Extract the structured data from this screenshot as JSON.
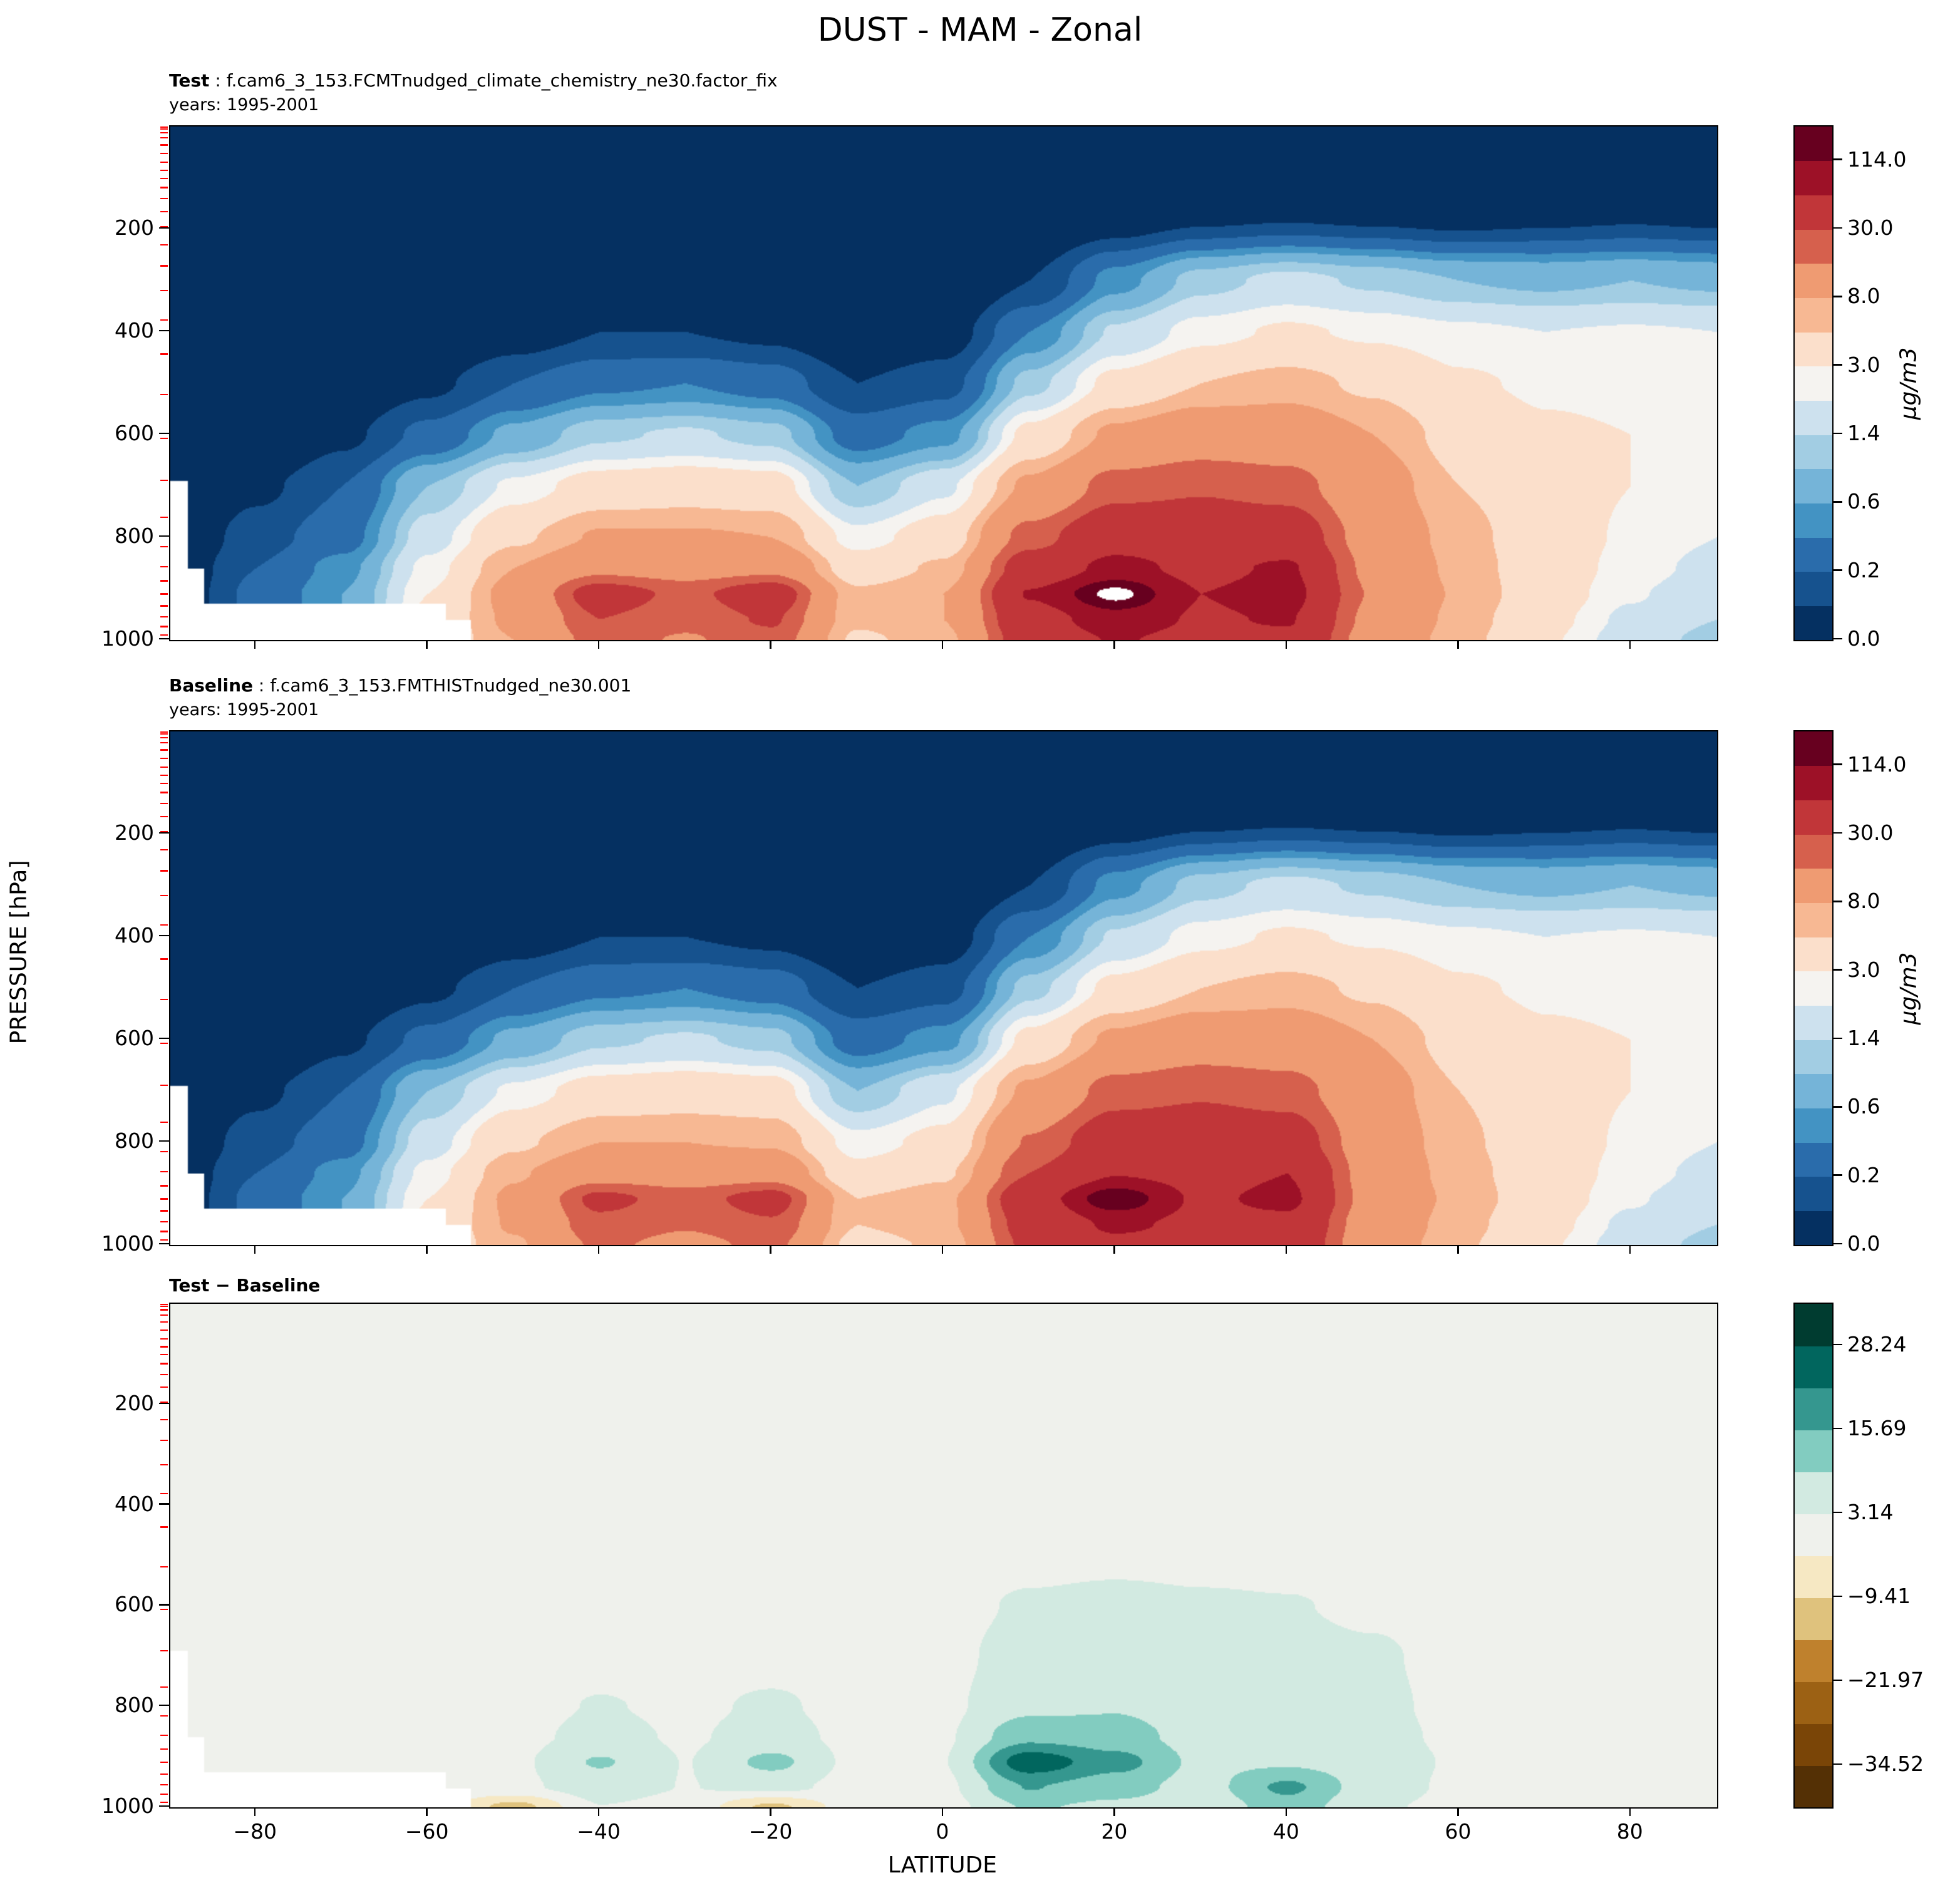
{
  "title": "DUST - MAM - Zonal",
  "panels": [
    {
      "label": "Test",
      "rest": " : f.cam6_3_153.FCMTnudged_climate_chemistry_ne30.factor_fix",
      "years": "years: 1995-2001"
    },
    {
      "label": "Baseline",
      "rest": " : f.cam6_3_153.FMTHISTnudged_ne30.001",
      "years": "years: 1995-2001"
    },
    {
      "label": "Test − Baseline",
      "rest": "",
      "years": ""
    }
  ],
  "axes": {
    "xlabel": "LATITUDE",
    "ylabel": "PRESSURE [hPa]",
    "x_tick_values": [
      -80,
      -60,
      -40,
      -20,
      0,
      20,
      40,
      60,
      80
    ],
    "x_tick_labels": [
      "−80",
      "−60",
      "−40",
      "−20",
      "0",
      "20",
      "40",
      "60",
      "80"
    ],
    "y_tick_values": [
      200,
      400,
      600,
      800,
      1000
    ],
    "y_tick_labels": [
      "200",
      "400",
      "600",
      "800",
      "1000"
    ],
    "xlim": [
      -90,
      90
    ],
    "ylim_top_hpa": 0,
    "ylim_bottom_hpa": 1000,
    "model_level_marks_hpa": [
      3.6,
      7.6,
      14.4,
      24.6,
      38.3,
      54.6,
      72.0,
      87.8,
      103.3,
      121.5,
      142.9,
      168.2,
      197.9,
      232.8,
      273.9,
      322.2,
      379.1,
      445.9,
      524.7,
      609.8,
      691.4,
      763.4,
      820.8,
      859.5,
      887.0,
      912.6,
      936.2,
      957.5,
      976.3,
      992.6
    ]
  },
  "colorbars": {
    "concentration": {
      "units": "μg/m3",
      "tick_labels": [
        "0.0",
        "0.2",
        "0.6",
        "1.4",
        "3.0",
        "8.0",
        "30.0",
        "114.0"
      ],
      "tick_segment_boundaries": [
        0,
        2,
        4,
        6,
        8,
        10,
        12,
        14
      ],
      "segment_colors": [
        "#053061",
        "#16528e",
        "#2a6cab",
        "#4393c3",
        "#75b4d8",
        "#a2cde3",
        "#cde1ee",
        "#f5f3f0",
        "#fbdfcb",
        "#f7b893",
        "#ef9b72",
        "#d6604d",
        "#c13639",
        "#9d1127",
        "#67001f"
      ]
    },
    "difference": {
      "units": "",
      "tick_labels": [
        "−34.52",
        "−21.97",
        "−9.41",
        "3.14",
        "15.69",
        "28.24"
      ],
      "tick_segment_boundaries": [
        1,
        3,
        5,
        7,
        9,
        11
      ],
      "segment_colors": [
        "#543005",
        "#7a4507",
        "#9c6114",
        "#bf812d",
        "#dfc27d",
        "#f6e8c3",
        "#eff1ec",
        "#d2eae1",
        "#82ccc0",
        "#35978f",
        "#01665e",
        "#003c30"
      ]
    }
  },
  "chart_data": [
    {
      "type": "contour_fill",
      "panel": "Test",
      "x": "latitude_deg",
      "y": "pressure_hPa",
      "units": "μg/m3",
      "interp": "log",
      "lats": [
        -90,
        -80,
        -70,
        -60,
        -50,
        -40,
        -30,
        -20,
        -10,
        0,
        10,
        20,
        30,
        40,
        50,
        60,
        70,
        80,
        90
      ],
      "pressures": [
        0,
        150,
        300,
        400,
        500,
        600,
        700,
        800,
        860,
        910,
        960,
        1000
      ],
      "values": [
        [
          0.01,
          0.01,
          0.01,
          0.01,
          0.01,
          0.01,
          0.01,
          0.01,
          0.01,
          0.01,
          0.01,
          0.01,
          0.01,
          0.01,
          0.01,
          0.01,
          0.01,
          0.01,
          0.01
        ],
        [
          0.01,
          0.01,
          0.01,
          0.01,
          0.01,
          0.01,
          0.01,
          0.01,
          0.01,
          0.01,
          0.02,
          0.03,
          0.05,
          0.06,
          0.05,
          0.04,
          0.05,
          0.06,
          0.05
        ],
        [
          0.01,
          0.01,
          0.01,
          0.02,
          0.03,
          0.05,
          0.05,
          0.04,
          0.02,
          0.03,
          0.1,
          0.5,
          1.2,
          1.6,
          1.3,
          1.0,
          0.9,
          1.0,
          0.9
        ],
        [
          0.01,
          0.01,
          0.02,
          0.03,
          0.06,
          0.1,
          0.1,
          0.08,
          0.04,
          0.06,
          0.4,
          1.5,
          2.6,
          3.2,
          2.8,
          2.4,
          2.2,
          2.3,
          2.2
        ],
        [
          0.01,
          0.02,
          0.04,
          0.08,
          0.2,
          0.35,
          0.4,
          0.3,
          0.1,
          0.15,
          1.2,
          3.5,
          5.5,
          6.5,
          5.0,
          3.2,
          2.8,
          2.7,
          2.6
        ],
        [
          0.02,
          0.03,
          0.08,
          0.25,
          0.7,
          1.3,
          1.5,
          1.2,
          0.3,
          0.5,
          3.5,
          9.0,
          13.0,
          12.0,
          8.0,
          4.5,
          3.2,
          3.0,
          2.8
        ],
        [
          0.03,
          0.08,
          0.2,
          1.0,
          2.4,
          3.8,
          4.2,
          3.8,
          1.0,
          2.0,
          9.0,
          24.0,
          28.0,
          24.0,
          11.0,
          5.5,
          3.8,
          3.0,
          2.6
        ],
        [
          0.04,
          0.15,
          0.3,
          1.8,
          5.0,
          8.5,
          8.5,
          8.0,
          2.5,
          4.0,
          24.0,
          55.0,
          50.0,
          48.0,
          14.0,
          6.5,
          4.0,
          2.8,
          2.2
        ],
        [
          0.05,
          0.2,
          0.5,
          2.5,
          8.0,
          16.0,
          14.0,
          16.0,
          4.0,
          6.0,
          45.0,
          85.0,
          62.0,
          78.0,
          16.0,
          7.0,
          4.0,
          2.6,
          1.9
        ],
        [
          0.05,
          0.25,
          0.6,
          3.0,
          10.0,
          42.0,
          26.0,
          46.0,
          6.0,
          8.0,
          75.0,
          165.0,
          72.0,
          88.0,
          18.0,
          7.5,
          4.0,
          2.3,
          1.6
        ],
        [
          0.05,
          0.25,
          0.6,
          3.5,
          9.0,
          30.0,
          22.0,
          32.0,
          6.0,
          8.0,
          55.0,
          95.0,
          68.0,
          75.0,
          16.0,
          7.0,
          3.5,
          2.0,
          1.4
        ],
        [
          0.05,
          0.25,
          0.6,
          3.5,
          8.0,
          24.0,
          18.0,
          26.0,
          5.0,
          7.0,
          45.0,
          75.0,
          60.0,
          65.0,
          14.0,
          6.5,
          3.2,
          1.8,
          1.2
        ]
      ],
      "level_bounds": [
        -1,
        0.1,
        0.2,
        0.4,
        0.6,
        1.0,
        1.4,
        2.2,
        3.0,
        5.5,
        8.0,
        19,
        30,
        72,
        114,
        150
      ],
      "level_colors": [
        "#053061",
        "#16528e",
        "#2a6cab",
        "#4393c3",
        "#75b4d8",
        "#a2cde3",
        "#cde1ee",
        "#f5f3f0",
        "#fbdfcb",
        "#f7b893",
        "#ef9b72",
        "#d6604d",
        "#c13639",
        "#9d1127",
        "#67001f"
      ],
      "over_color": "#ffffff",
      "masked_surface": [
        [
          -90,
          -88,
          690
        ],
        [
          -88,
          -86,
          860
        ],
        [
          -86,
          -58,
          930
        ],
        [
          -58,
          -55,
          962
        ]
      ]
    },
    {
      "type": "contour_fill",
      "panel": "Baseline",
      "x": "latitude_deg",
      "y": "pressure_hPa",
      "units": "μg/m3",
      "interp": "log",
      "lats": [
        -90,
        -80,
        -70,
        -60,
        -50,
        -40,
        -30,
        -20,
        -10,
        0,
        10,
        20,
        30,
        40,
        50,
        60,
        70,
        80,
        90
      ],
      "pressures": [
        0,
        150,
        300,
        400,
        500,
        600,
        700,
        800,
        860,
        910,
        960,
        1000
      ],
      "values": [
        [
          0.01,
          0.01,
          0.01,
          0.01,
          0.01,
          0.01,
          0.01,
          0.01,
          0.01,
          0.01,
          0.01,
          0.01,
          0.01,
          0.01,
          0.01,
          0.01,
          0.01,
          0.01,
          0.01
        ],
        [
          0.01,
          0.01,
          0.01,
          0.01,
          0.01,
          0.01,
          0.01,
          0.01,
          0.01,
          0.01,
          0.02,
          0.03,
          0.05,
          0.06,
          0.05,
          0.04,
          0.05,
          0.06,
          0.05
        ],
        [
          0.01,
          0.01,
          0.01,
          0.02,
          0.03,
          0.05,
          0.05,
          0.04,
          0.02,
          0.03,
          0.1,
          0.5,
          1.2,
          1.6,
          1.3,
          1.0,
          0.9,
          1.0,
          0.9
        ],
        [
          0.01,
          0.01,
          0.02,
          0.03,
          0.06,
          0.1,
          0.1,
          0.08,
          0.04,
          0.06,
          0.4,
          1.5,
          2.6,
          3.2,
          2.8,
          2.4,
          2.2,
          2.3,
          2.2
        ],
        [
          0.01,
          0.02,
          0.04,
          0.08,
          0.2,
          0.35,
          0.4,
          0.3,
          0.1,
          0.15,
          1.2,
          3.5,
          5.5,
          6.5,
          5.0,
          3.2,
          2.8,
          2.7,
          2.6
        ],
        [
          0.02,
          0.03,
          0.08,
          0.25,
          0.7,
          1.3,
          1.5,
          1.2,
          0.3,
          0.5,
          3.5,
          9.0,
          13.0,
          12.0,
          8.0,
          4.5,
          3.2,
          3.0,
          2.8
        ],
        [
          0.03,
          0.08,
          0.2,
          1.0,
          2.4,
          3.8,
          4.2,
          3.8,
          1.0,
          2.0,
          9.0,
          24.0,
          28.0,
          24.0,
          11.0,
          5.5,
          3.8,
          3.0,
          2.6
        ],
        [
          0.04,
          0.15,
          0.3,
          1.8,
          5.0,
          8.0,
          8.0,
          7.5,
          2.5,
          3.5,
          20.0,
          48.0,
          48.0,
          44.0,
          13.0,
          6.0,
          4.0,
          2.8,
          2.2
        ],
        [
          0.05,
          0.2,
          0.5,
          2.5,
          7.5,
          14.0,
          13.0,
          14.0,
          3.5,
          5.0,
          30.0,
          70.0,
          58.0,
          72.0,
          14.0,
          6.5,
          4.0,
          2.6,
          1.9
        ],
        [
          0.05,
          0.25,
          0.6,
          3.0,
          9.0,
          35.0,
          24.0,
          39.0,
          5.5,
          7.0,
          52.0,
          150.0,
          66.0,
          82.0,
          15.0,
          7.0,
          4.0,
          2.3,
          1.6
        ],
        [
          0.05,
          0.25,
          0.6,
          3.5,
          8.5,
          26.0,
          20.0,
          28.0,
          5.5,
          7.0,
          40.0,
          80.0,
          62.0,
          62.0,
          13.0,
          6.5,
          3.5,
          2.0,
          1.4
        ],
        [
          0.05,
          0.25,
          0.6,
          3.5,
          7.5,
          21.0,
          16.0,
          22.0,
          4.5,
          6.0,
          35.0,
          62.0,
          55.0,
          55.0,
          12.0,
          6.0,
          3.2,
          1.8,
          1.2
        ]
      ],
      "level_bounds": [
        -1,
        0.1,
        0.2,
        0.4,
        0.6,
        1.0,
        1.4,
        2.2,
        3.0,
        5.5,
        8.0,
        19,
        30,
        72,
        114,
        150
      ],
      "level_colors": [
        "#053061",
        "#16528e",
        "#2a6cab",
        "#4393c3",
        "#75b4d8",
        "#a2cde3",
        "#cde1ee",
        "#f5f3f0",
        "#fbdfcb",
        "#f7b893",
        "#ef9b72",
        "#d6604d",
        "#c13639",
        "#9d1127",
        "#67001f"
      ],
      "over_color": "#ffffff",
      "masked_surface": [
        [
          -90,
          -88,
          690
        ],
        [
          -88,
          -86,
          860
        ],
        [
          -86,
          -58,
          930
        ],
        [
          -58,
          -55,
          962
        ]
      ]
    },
    {
      "type": "contour_fill",
      "panel": "Test − Baseline",
      "x": "latitude_deg",
      "y": "pressure_hPa",
      "units": "μg/m3",
      "interp": "linear",
      "lats": [
        -90,
        -80,
        -70,
        -60,
        -50,
        -40,
        -30,
        -20,
        -10,
        0,
        10,
        20,
        30,
        40,
        50,
        60,
        70,
        80,
        90
      ],
      "pressures": [
        0,
        300,
        500,
        600,
        700,
        800,
        860,
        910,
        960,
        1000
      ],
      "values": [
        [
          0.2,
          0.2,
          0.2,
          0.2,
          0.2,
          0.2,
          0.2,
          0.2,
          0.2,
          0.2,
          0.2,
          0.2,
          0.2,
          0.2,
          0.2,
          0.2,
          0.2,
          0.2,
          0.2
        ],
        [
          0.2,
          0.2,
          0.2,
          0.2,
          0.2,
          0.2,
          0.2,
          0.2,
          0.2,
          0.2,
          0.2,
          0.2,
          0.2,
          0.2,
          0.2,
          0.2,
          0.2,
          0.2,
          0.2
        ],
        [
          0.2,
          0.2,
          0.2,
          0.2,
          0.2,
          0.3,
          0.3,
          0.3,
          0.3,
          0.4,
          1.0,
          1.5,
          1.2,
          1.0,
          0.8,
          0.4,
          0.3,
          0.2,
          0.2
        ],
        [
          0.2,
          0.2,
          0.2,
          0.3,
          0.3,
          0.5,
          0.5,
          0.5,
          0.5,
          1.0,
          4.0,
          5.0,
          4.0,
          3.5,
          2.0,
          0.6,
          0.3,
          0.2,
          0.2
        ],
        [
          0.2,
          0.2,
          0.3,
          0.4,
          0.5,
          1.0,
          0.8,
          1.0,
          0.8,
          1.5,
          6.0,
          7.0,
          5.0,
          5.0,
          4.0,
          1.0,
          0.4,
          0.3,
          0.2
        ],
        [
          0.2,
          0.2,
          0.3,
          0.5,
          1.0,
          3.5,
          2.0,
          4.0,
          1.0,
          2.0,
          8.0,
          9.0,
          6.0,
          6.0,
          4.5,
          1.5,
          0.5,
          0.3,
          0.2
        ],
        [
          0.2,
          0.2,
          0.4,
          0.6,
          1.5,
          5.0,
          2.5,
          5.5,
          1.5,
          2.5,
          14.0,
          12.0,
          7.0,
          7.0,
          5.0,
          2.0,
          0.6,
          0.3,
          0.2
        ],
        [
          0.2,
          0.3,
          0.5,
          0.8,
          2.0,
          10.0,
          3.0,
          11.0,
          1.5,
          3.0,
          26.0,
          18.0,
          8.0,
          8.5,
          6.0,
          2.5,
          0.6,
          0.3,
          0.2
        ],
        [
          0.2,
          0.3,
          0.5,
          0.8,
          2.0,
          6.0,
          3.0,
          5.0,
          1.0,
          2.0,
          16.0,
          12.0,
          7.0,
          17.0,
          6.0,
          2.0,
          0.5,
          0.3,
          0.2
        ],
        [
          0.2,
          0.3,
          0.5,
          0.8,
          -12.0,
          3.0,
          1.0,
          -11.0,
          0.5,
          1.0,
          10.0,
          8.0,
          5.0,
          13.0,
          4.0,
          1.5,
          0.4,
          0.3,
          0.2
        ]
      ],
      "level_bounds": [
        -1000,
        -34.52,
        -28.245,
        -21.97,
        -15.685,
        -9.41,
        -3.135,
        3.14,
        9.415,
        15.69,
        21.965,
        28.24,
        1000
      ],
      "level_colors": [
        "#543005",
        "#7a4507",
        "#9c6114",
        "#bf812d",
        "#dfc27d",
        "#f6e8c3",
        "#eff1ec",
        "#d2eae1",
        "#82ccc0",
        "#35978f",
        "#01665e",
        "#003c30"
      ],
      "over_color": null,
      "masked_surface": [
        [
          -90,
          -88,
          690
        ],
        [
          -88,
          -86,
          860
        ],
        [
          -86,
          -58,
          930
        ],
        [
          -58,
          -55,
          962
        ]
      ]
    }
  ]
}
